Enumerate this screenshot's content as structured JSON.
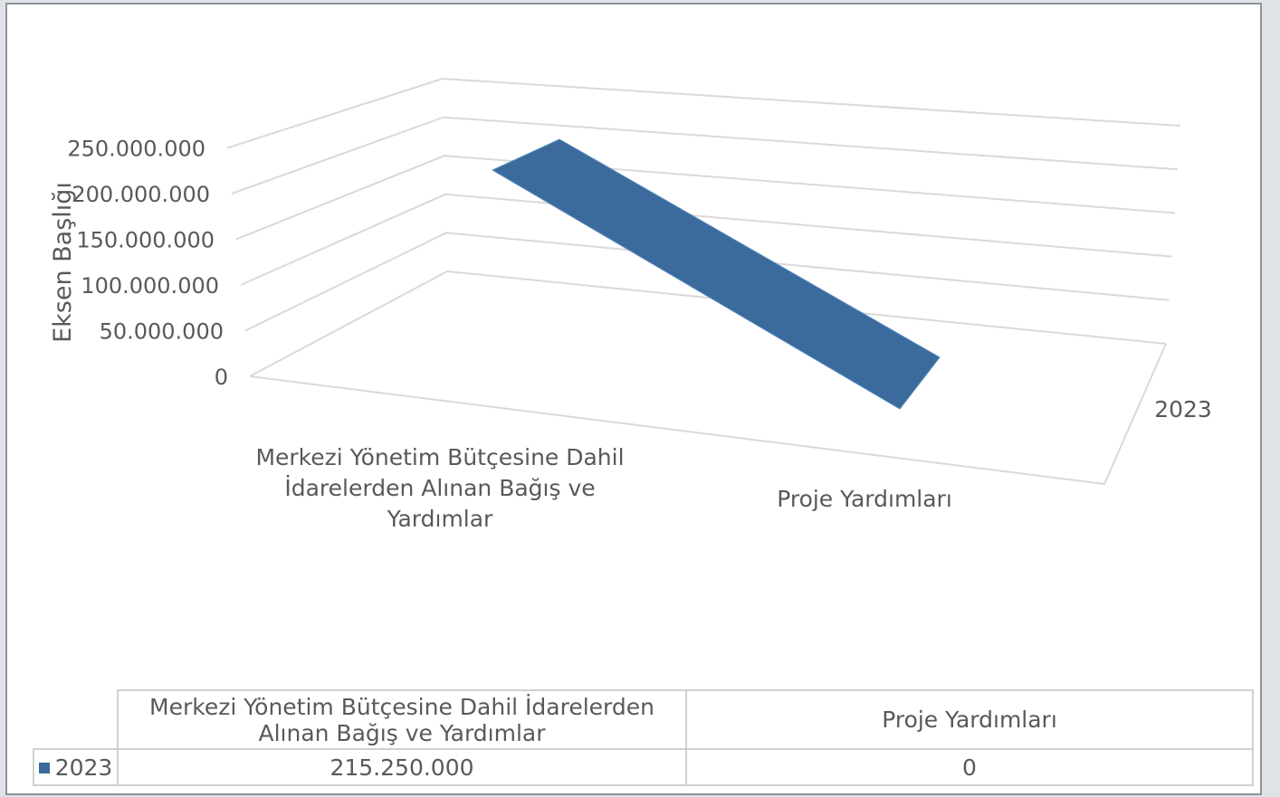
{
  "chart_data": {
    "type": "bar",
    "variant": "3d-ribbon",
    "categories": [
      "Merkezi Yönetim Bütçesine Dahil İdarelerden Alınan Bağış ve Yardımlar",
      "Proje Yardımları"
    ],
    "category_label_lines": [
      [
        "Merkezi Yönetim Bütçesine Dahil",
        "İdarelerden Alınan Bağış ve",
        "Yardımlar"
      ],
      [
        "Proje Yardımları"
      ]
    ],
    "series": [
      {
        "name": "2023",
        "values": [
          215250000,
          0
        ],
        "color": "#3a6b9c"
      }
    ],
    "depth_label": "2023",
    "ylabel": "Eksen Başlığı",
    "ylim": [
      0,
      250000000
    ],
    "yticks": [
      "0",
      "50.000.000",
      "100.000.000",
      "150.000.000",
      "200.000.000",
      "250.000.000"
    ],
    "grid": true,
    "colors": {
      "gridline": "#d9d9d9",
      "text": "#595959"
    }
  },
  "table": {
    "headers": [
      [
        "Merkezi Yönetim Bütçesine Dahil İdarelerden",
        "Alınan Bağış ve Yardımlar"
      ],
      [
        "Proje Yardımları"
      ]
    ],
    "row_label": "2023",
    "values": [
      "215.250.000",
      "0"
    ]
  }
}
